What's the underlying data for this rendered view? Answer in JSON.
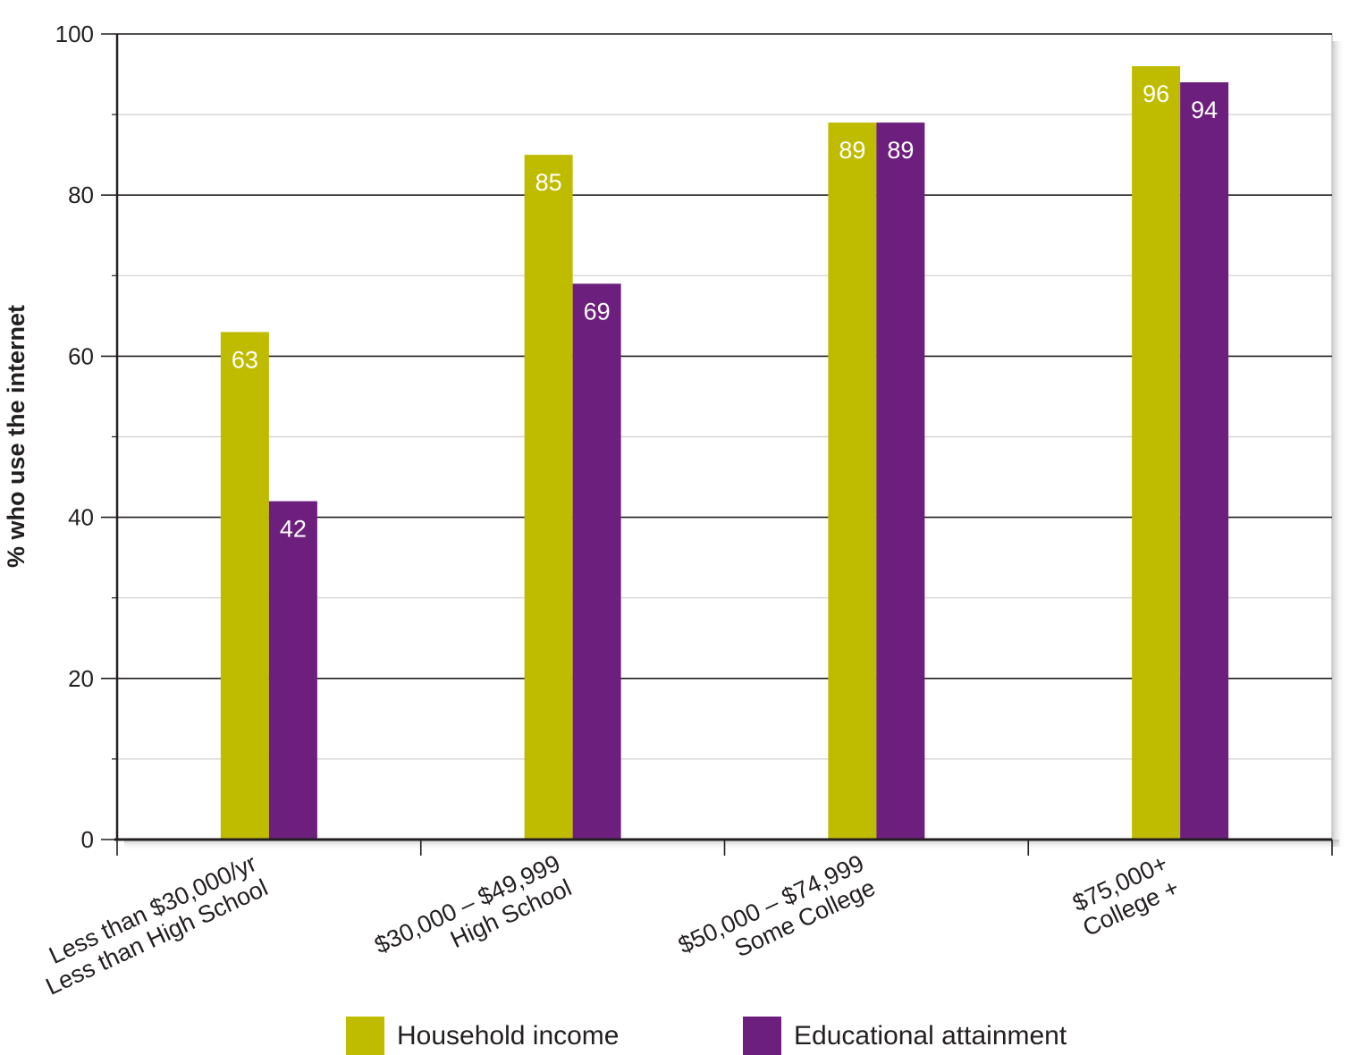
{
  "chart_data": {
    "type": "bar",
    "title": "",
    "xlabel": "",
    "ylabel": "% who use the internet",
    "ylim": [
      0,
      100
    ],
    "yticks": [
      0,
      20,
      40,
      60,
      80,
      100
    ],
    "minor_gridlines": [
      10,
      30,
      50,
      70,
      90
    ],
    "categories": [
      [
        "Less than $30,000/yr",
        "Less than High School"
      ],
      [
        "$30,000 – $49,999",
        "High School"
      ],
      [
        "$50,000 – $74,999",
        "Some College"
      ],
      [
        "$75,000+",
        "College +"
      ]
    ],
    "series": [
      {
        "name": "Household income",
        "color": "#bfbc00",
        "values": [
          63,
          85,
          89,
          96
        ]
      },
      {
        "name": "Educational attainment",
        "color": "#6d1f7e",
        "values": [
          42,
          69,
          89,
          94
        ]
      }
    ],
    "legend_position": "bottom-center",
    "grid": true
  }
}
